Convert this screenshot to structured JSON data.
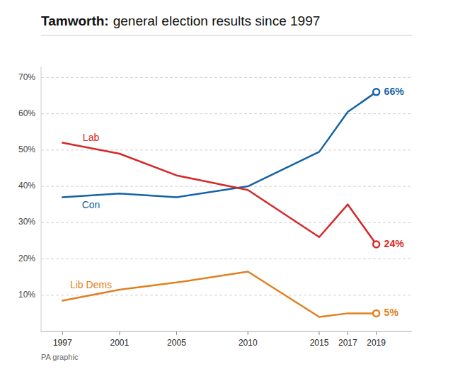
{
  "chart_data": {
    "type": "line",
    "title": "Tamworth:",
    "subtitle": "general election results since 1997",
    "annotations": [
      "PA graphic"
    ],
    "x": [
      1997,
      2001,
      2005,
      2010,
      2015,
      2017,
      2019
    ],
    "xlim": [
      1995.5,
      2021.5
    ],
    "xticks": [
      1997,
      2001,
      2005,
      2010,
      2015,
      2017,
      2019
    ],
    "ylim": [
      0,
      73
    ],
    "yticks": [
      {
        "value": 10,
        "label": "10%"
      },
      {
        "value": 20,
        "label": "20%"
      },
      {
        "value": 30,
        "label": "30%"
      },
      {
        "value": 40,
        "label": "40%"
      },
      {
        "value": 50,
        "label": "50%"
      },
      {
        "value": 60,
        "label": "60%"
      },
      {
        "value": 70,
        "label": "70%"
      }
    ],
    "grid": true,
    "series": [
      {
        "name": "Con",
        "color": "#1563a6",
        "values": [
          37,
          38,
          37,
          40,
          49.5,
          60.5,
          66
        ],
        "value_labels": [
          null,
          null,
          null,
          null,
          null,
          null,
          "66%"
        ]
      },
      {
        "name": "Lab",
        "color": "#d62828",
        "values": [
          52,
          49,
          43,
          39,
          26,
          35,
          24
        ],
        "value_labels": [
          null,
          null,
          null,
          null,
          null,
          null,
          "24%"
        ]
      },
      {
        "name": "Lib Dems",
        "color": "#e08020",
        "values": [
          8.5,
          11.5,
          13.5,
          16.5,
          4,
          5,
          5
        ],
        "value_labels": [
          null,
          null,
          null,
          null,
          null,
          null,
          "5%"
        ]
      }
    ]
  }
}
